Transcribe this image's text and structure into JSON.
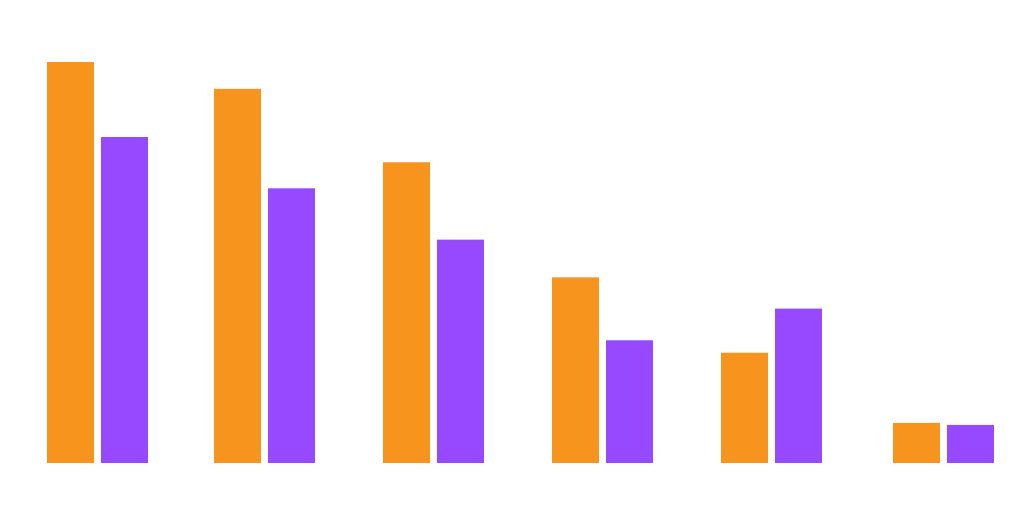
{
  "chart_data": {
    "type": "bar",
    "categories": [
      "",
      "",
      "",
      "",
      "",
      ""
    ],
    "series": [
      {
        "color": "#F7941D",
        "values": [
          100,
          93.3,
          75,
          46.3,
          27.5,
          10
        ]
      },
      {
        "color": "#9649FF",
        "values": [
          81.3,
          68.5,
          55.7,
          30.6,
          38.5,
          9.5
        ]
      }
    ],
    "ylim": [
      0,
      100
    ],
    "grid": false,
    "legend": "none"
  }
}
